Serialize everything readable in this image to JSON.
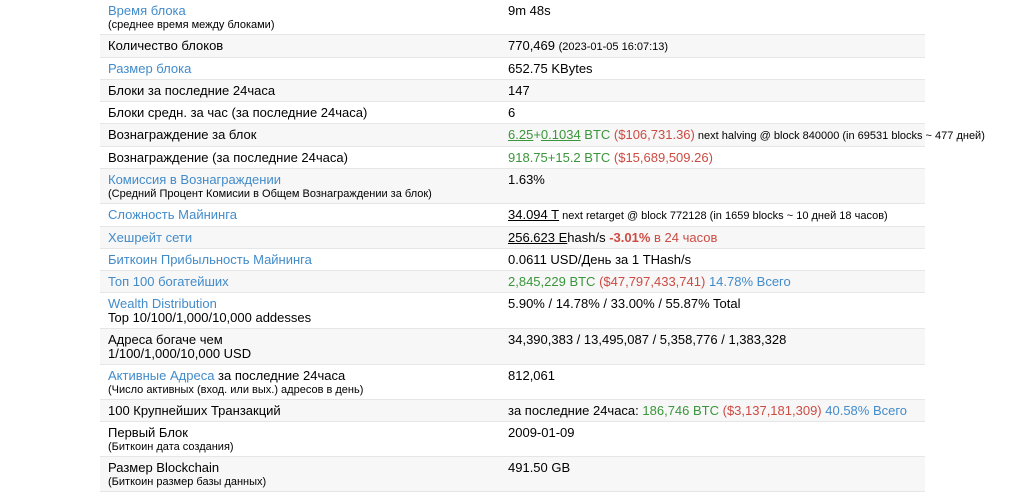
{
  "colors": {
    "link": "#428bca",
    "green": "#3a963a",
    "red": "#cc4b43",
    "blue": "#428bca",
    "row_alt_bg": "#f7f7f7",
    "row_border": "#e6e6e6"
  },
  "table": {
    "rows": [
      {
        "label": [
          [
            {
              "t": "Время блока",
              "s": "l"
            }
          ],
          [
            {
              "t": "(среднее время между блоками)",
              "s": "s"
            }
          ]
        ],
        "value": [
          {
            "t": "9m 48s",
            "s": "t"
          }
        ]
      },
      {
        "label": [
          [
            {
              "t": "Количество блоков",
              "s": "t"
            }
          ]
        ],
        "value": [
          {
            "t": "770,469 ",
            "s": "t"
          },
          {
            "t": "(2023-01-05 16:07:13)",
            "s": "s"
          }
        ]
      },
      {
        "label": [
          [
            {
              "t": "Размер блока",
              "s": "l"
            }
          ]
        ],
        "value": [
          {
            "t": "652.75 KBytes",
            "s": "t"
          }
        ]
      },
      {
        "label": [
          [
            {
              "t": "Блоки за последние 24часа",
              "s": "t"
            }
          ]
        ],
        "value": [
          {
            "t": "147",
            "s": "t"
          }
        ]
      },
      {
        "label": [
          [
            {
              "t": "Блоки средн. за час (за последние 24часа)",
              "s": "t"
            }
          ]
        ],
        "value": [
          {
            "t": "6",
            "s": "t"
          }
        ]
      },
      {
        "label": [
          [
            {
              "t": "Вознаграждение за блок",
              "s": "t"
            }
          ]
        ],
        "value": [
          {
            "t": "6.25",
            "s": "gu"
          },
          {
            "t": "+",
            "s": "g"
          },
          {
            "t": "0.1034",
            "s": "gu"
          },
          {
            "t": " BTC ",
            "s": "g"
          },
          {
            "t": "($106,731.36)",
            "s": "r"
          },
          {
            "t": " next halving @ block 840000 (in 69531 blocks ~ 477 дней)",
            "s": "s"
          }
        ]
      },
      {
        "label": [
          [
            {
              "t": "Вознаграждение (за последние 24часа)",
              "s": "t"
            }
          ]
        ],
        "value": [
          {
            "t": "918.75+15.2 BTC ",
            "s": "g"
          },
          {
            "t": "($15,689,509.26)",
            "s": "r"
          }
        ]
      },
      {
        "label": [
          [
            {
              "t": "Комиссия в Вознаграждении",
              "s": "l"
            }
          ],
          [
            {
              "t": "(Средний Процент Комисии в Общем Вознаграждении за блок)",
              "s": "s"
            }
          ]
        ],
        "value": [
          {
            "t": "1.63%",
            "s": "t"
          }
        ]
      },
      {
        "label": [
          [
            {
              "t": "Сложность Майнинга",
              "s": "l"
            }
          ]
        ],
        "value": [
          {
            "t": "34.094 T",
            "s": "u"
          },
          {
            "t": " next retarget @ block 772128 (in 1659 blocks ~ 10 дней 18 часов)",
            "s": "s"
          }
        ]
      },
      {
        "label": [
          [
            {
              "t": "Хешрейт сети",
              "s": "l"
            }
          ]
        ],
        "value": [
          {
            "t": "256.623 E",
            "s": "u"
          },
          {
            "t": "hash/s ",
            "s": "t"
          },
          {
            "t": "-3.01%",
            "s": "rb"
          },
          {
            "t": " в 24 часов",
            "s": "r"
          }
        ]
      },
      {
        "label": [
          [
            {
              "t": "Биткоин Прибыльность Майнинга",
              "s": "l"
            }
          ]
        ],
        "value": [
          {
            "t": "0.0611 USD/День за 1 THash/s",
            "s": "t"
          }
        ]
      },
      {
        "label": [
          [
            {
              "t": "Топ 100 богатейших",
              "s": "l"
            }
          ]
        ],
        "value": [
          {
            "t": "2,845,229 BTC ",
            "s": "g"
          },
          {
            "t": "($47,797,433,741)",
            "s": "r"
          },
          {
            "t": " 14.78% Всего",
            "s": "b"
          }
        ]
      },
      {
        "label": [
          [
            {
              "t": "Wealth Distribution",
              "s": "l"
            }
          ],
          [
            {
              "t": "Top 10/100/1,000/10,000 addesses",
              "s": "t"
            }
          ]
        ],
        "value": [
          {
            "t": "5.90% / 14.78% / 33.00% / 55.87% Total",
            "s": "t"
          }
        ]
      },
      {
        "label": [
          [
            {
              "t": "Адреса богаче чем",
              "s": "t"
            }
          ],
          [
            {
              "t": "1/100/1,000/10,000 USD",
              "s": "t"
            }
          ]
        ],
        "value": [
          {
            "t": "34,390,383 / 13,495,087 / 5,358,776 / 1,383,328",
            "s": "t"
          }
        ]
      },
      {
        "label": [
          [
            {
              "t": "Активные Адреса",
              "s": "l"
            },
            {
              "t": " за последние 24часа",
              "s": "t"
            }
          ],
          [
            {
              "t": "(Число активных (вход. или вых.) адресов в день)",
              "s": "s"
            }
          ]
        ],
        "value": [
          {
            "t": "812,061",
            "s": "t"
          }
        ]
      },
      {
        "label": [
          [
            {
              "t": "100 Крупнейших Транзакций",
              "s": "t"
            }
          ]
        ],
        "value": [
          {
            "t": "за последние 24часа: ",
            "s": "t"
          },
          {
            "t": "186,746 BTC ",
            "s": "g"
          },
          {
            "t": "($3,137,181,309)",
            "s": "r"
          },
          {
            "t": " 40.58% Всего",
            "s": "b"
          }
        ]
      },
      {
        "label": [
          [
            {
              "t": "Первый Блок",
              "s": "t"
            }
          ],
          [
            {
              "t": "(Биткоин дата создания)",
              "s": "s"
            }
          ]
        ],
        "value": [
          {
            "t": "2009-01-09",
            "s": "t"
          }
        ]
      },
      {
        "label": [
          [
            {
              "t": "Размер Blockchain",
              "s": "t"
            }
          ],
          [
            {
              "t": "(Биткоин размер базы данных)",
              "s": "s"
            }
          ]
        ],
        "value": [
          {
            "t": "491.50 GB",
            "s": "t"
          }
        ]
      }
    ]
  }
}
